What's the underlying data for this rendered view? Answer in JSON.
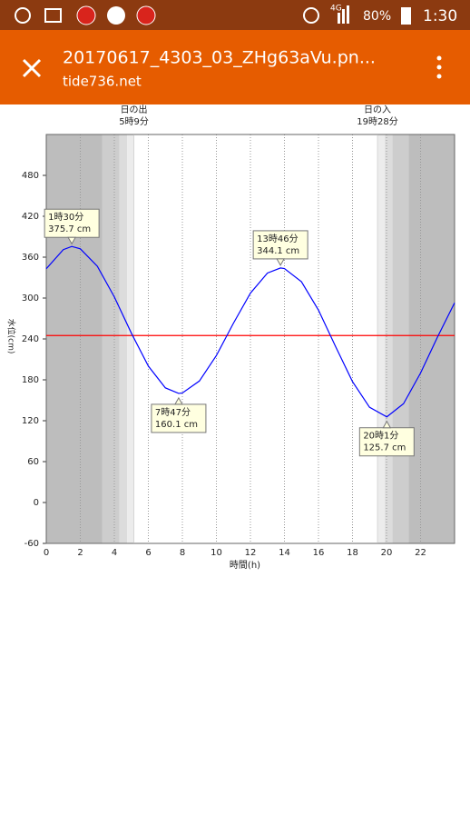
{
  "status_bar": {
    "network": "4G",
    "battery": "80%",
    "time": "1:30"
  },
  "toolbar": {
    "title": "20170617_4303_03_ZHg63aVu.pn...",
    "subtitle": "tide736.net"
  },
  "chart_data": {
    "type": "line",
    "xlabel": "時間(h)",
    "ylabel": "水位(cm)",
    "x": [
      0,
      1,
      1.5,
      2,
      3,
      4,
      5,
      6,
      7,
      7.783,
      8,
      9,
      10,
      11,
      12,
      13,
      13.767,
      14,
      15,
      16,
      17,
      18,
      19,
      20.017,
      21,
      22,
      23,
      24
    ],
    "values": [
      343,
      371,
      375.7,
      372.3,
      346.7,
      301.7,
      248.6,
      200.1,
      168.2,
      160.1,
      160.7,
      178.3,
      215.7,
      263,
      307.2,
      336.7,
      344.1,
      343.3,
      323.9,
      282.3,
      229.1,
      177.4,
      139.8,
      125.7,
      145,
      190,
      243,
      293
    ],
    "color": "#0000ff",
    "xlim": [
      0,
      24
    ],
    "xticks": [
      0,
      2,
      4,
      6,
      8,
      10,
      12,
      14,
      16,
      18,
      20,
      22
    ],
    "ylim": [
      -60,
      540
    ],
    "yticks": [
      -60,
      0,
      60,
      120,
      180,
      240,
      300,
      360,
      420,
      480
    ],
    "reference_line": {
      "value": 245,
      "color": "#ff0000"
    },
    "shading": [
      {
        "x0": 0,
        "x1": 3.3,
        "color": "#bdbdbd"
      },
      {
        "x0": 3.3,
        "x1": 4.3,
        "color": "#cdcdcd"
      },
      {
        "x0": 4.3,
        "x1": 4.75,
        "color": "#dcdcdc"
      },
      {
        "x0": 4.75,
        "x1": 5.15,
        "color": "#ececec"
      },
      {
        "x0": 19.47,
        "x1": 19.9,
        "color": "#ececec"
      },
      {
        "x0": 19.9,
        "x1": 20.35,
        "color": "#dcdcdc"
      },
      {
        "x0": 20.35,
        "x1": 21.3,
        "color": "#cdcdcd"
      },
      {
        "x0": 21.3,
        "x1": 24,
        "color": "#bdbdbd"
      }
    ],
    "sun_events": [
      {
        "x": 5.15,
        "label": "日の出",
        "time": "5時9分"
      },
      {
        "x": 19.467,
        "label": "日の入",
        "time": "19時28分"
      }
    ],
    "annotations": [
      {
        "x": 1.5,
        "y": 375.7,
        "label": "1時30分",
        "value_label": "375.7 cm"
      },
      {
        "x": 7.783,
        "y": 160.1,
        "label": "7時47分",
        "value_label": "160.1 cm"
      },
      {
        "x": 13.767,
        "y": 344.1,
        "label": "13時46分",
        "value_label": "344.1 cm"
      },
      {
        "x": 20.017,
        "y": 125.7,
        "label": "20時1分",
        "value_label": "125.7 cm"
      }
    ]
  }
}
